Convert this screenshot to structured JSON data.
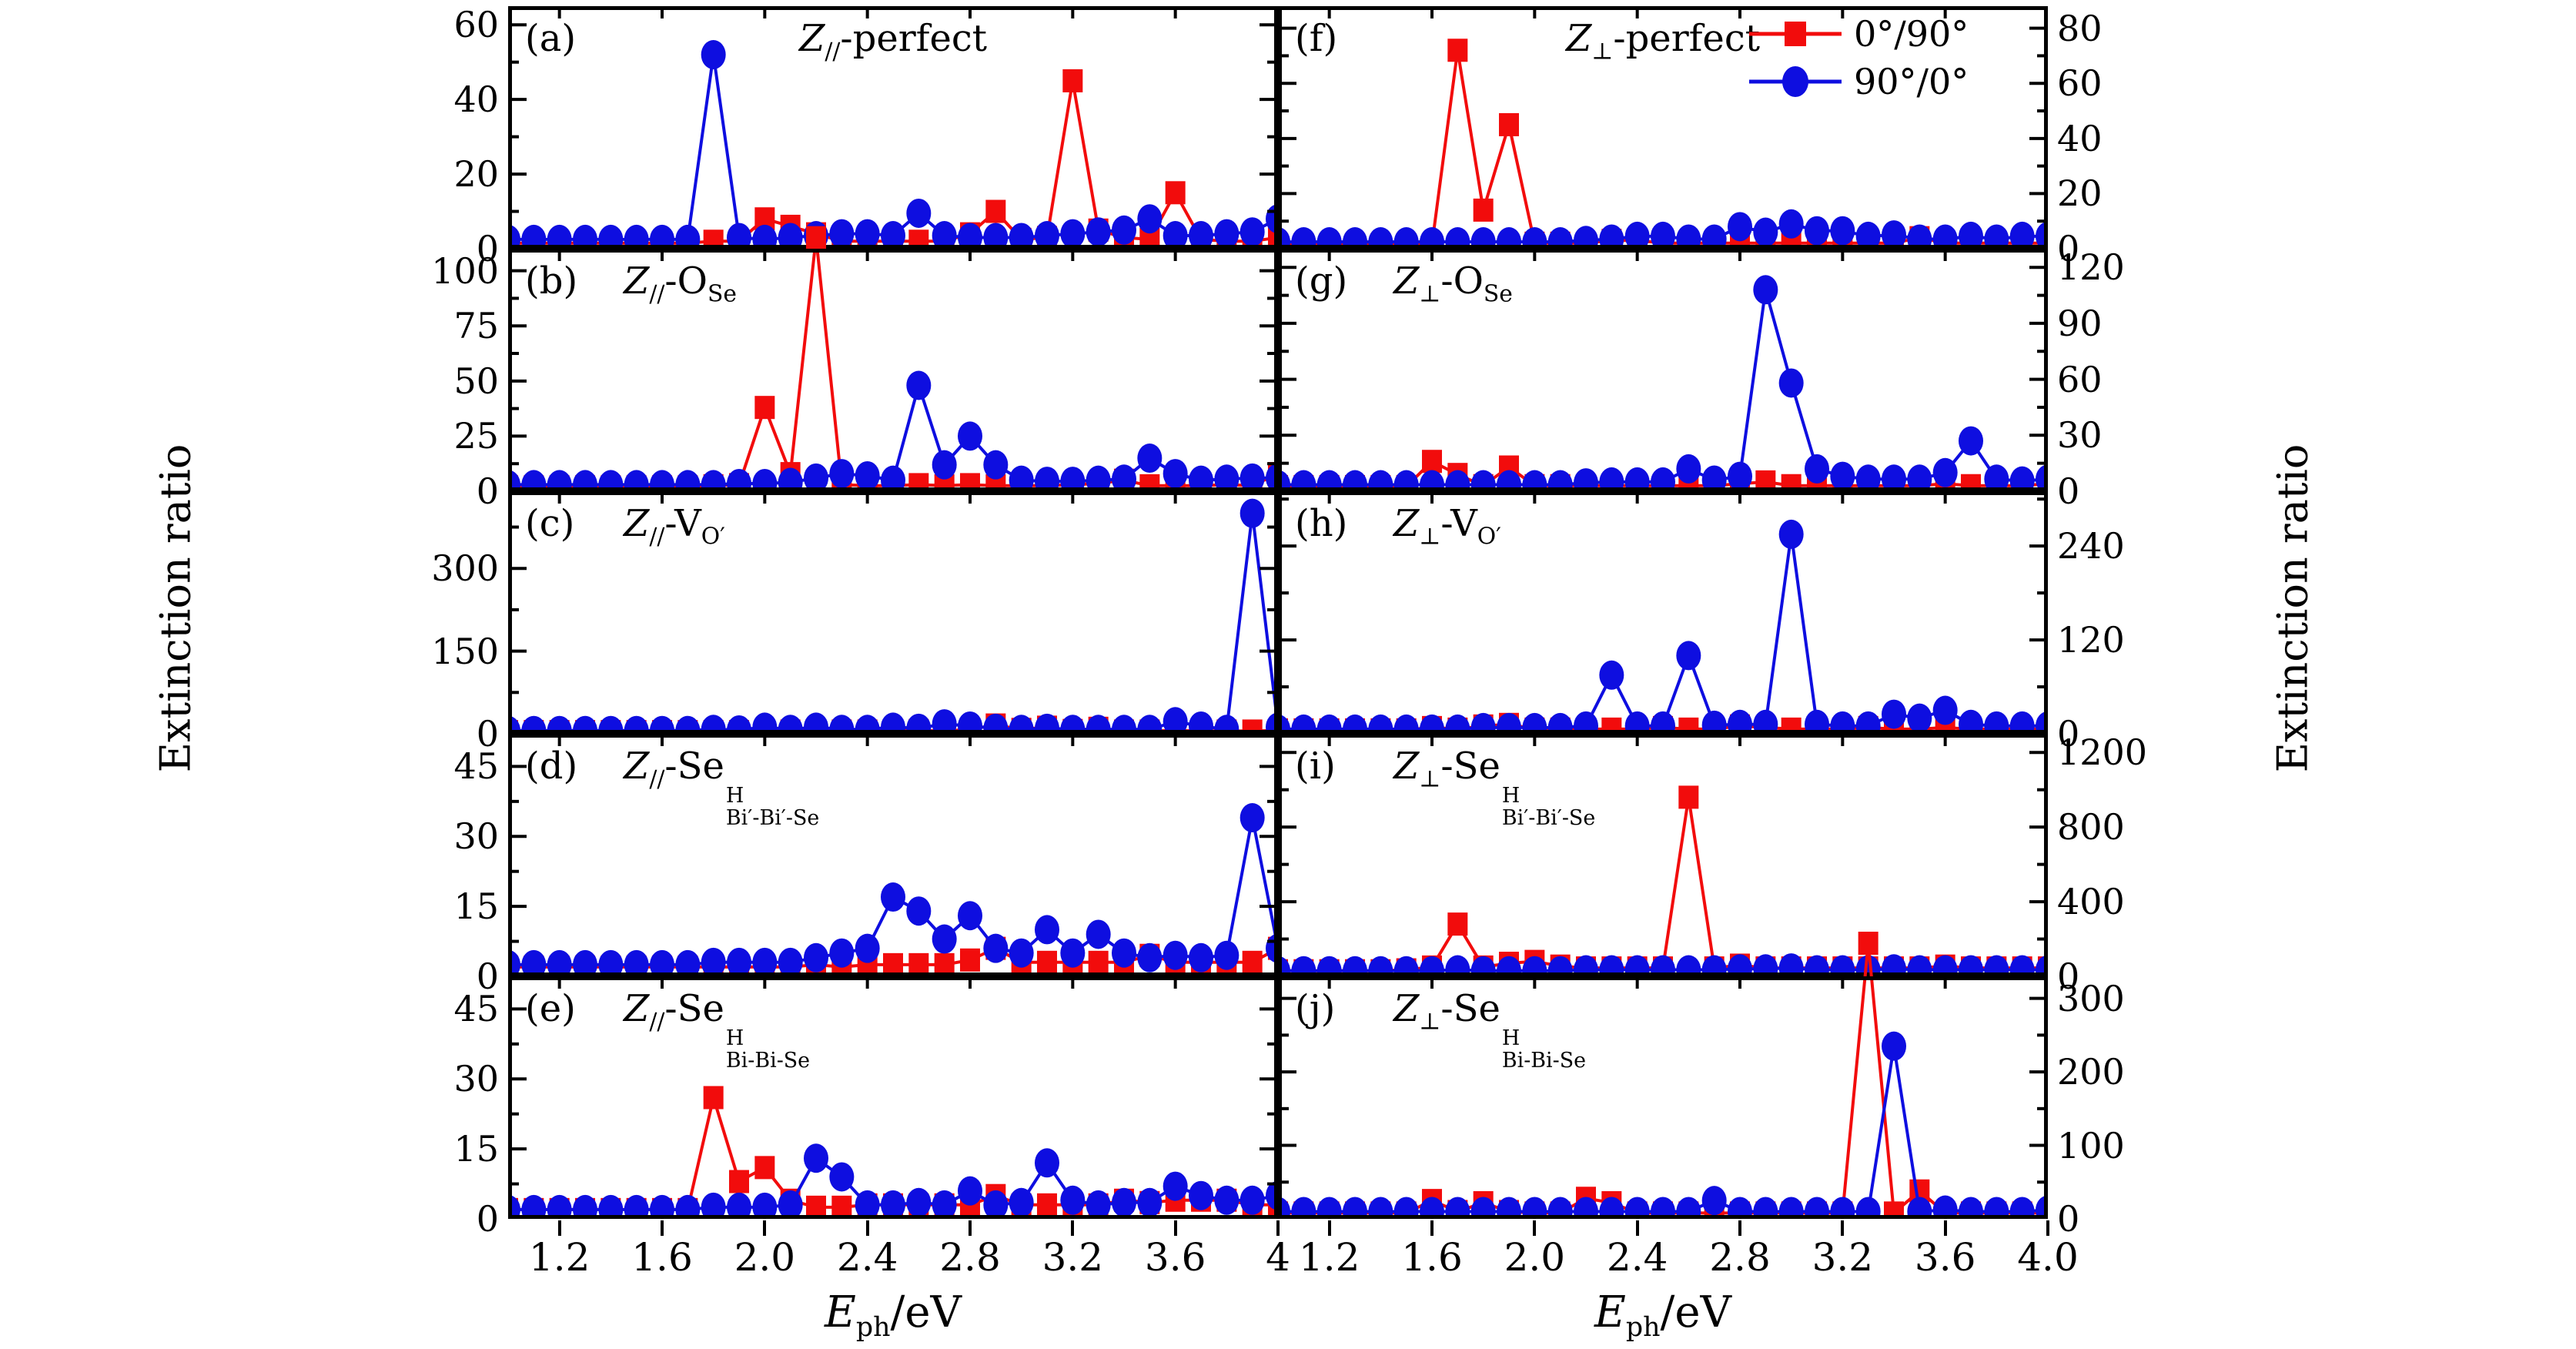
{
  "figure": {
    "y_axis_label": "Extinction ratio",
    "x_axis_title": [
      {
        "t": "E",
        "it": true
      },
      {
        "sub": "ph"
      },
      {
        "t": "/eV"
      }
    ]
  },
  "chart_data": {
    "type": "line",
    "x_min": 1.0,
    "x_max": 4.0,
    "x": [
      1.0,
      1.1,
      1.2,
      1.3,
      1.4,
      1.5,
      1.6,
      1.7,
      1.8,
      1.9,
      2.0,
      2.1,
      2.2,
      2.3,
      2.4,
      2.5,
      2.6,
      2.7,
      2.8,
      2.9,
      3.0,
      3.1,
      3.2,
      3.3,
      3.4,
      3.5,
      3.6,
      3.7,
      3.8,
      3.9,
      4.0
    ],
    "xticks": {
      "values": [
        1.2,
        1.6,
        2.0,
        2.4,
        2.8,
        3.2,
        3.6,
        4.0
      ],
      "labels_left": [
        "1.2",
        "1.6",
        "2.0",
        "2.4",
        "2.8",
        "3.2",
        "3.6",
        "4"
      ],
      "labels_right": [
        "1.2",
        "1.6",
        "2.0",
        "2.4",
        "2.8",
        "3.2",
        "3.6",
        "4.0"
      ]
    },
    "legend": [
      {
        "key": "red",
        "label": "0°/90°",
        "marker": "square",
        "color": "#f20c0c"
      },
      {
        "key": "blue",
        "label": "90°/0°",
        "marker": "circle",
        "color": "#0e0ee0"
      }
    ],
    "panels": [
      {
        "id": "a",
        "tag": "(a)",
        "col": 0,
        "row": 0,
        "center_title": true,
        "ylim": 65,
        "yticks": [
          0,
          20,
          40,
          60
        ],
        "title": [
          {
            "t": "Z",
            "it": true
          },
          {
            "sub": "//"
          },
          {
            "t": "-perfect"
          }
        ],
        "series": {
          "red": [
            1.5,
            1.5,
            1.5,
            1.5,
            1.5,
            1.5,
            1.5,
            1.5,
            2,
            2,
            8,
            6,
            4,
            2,
            2,
            2,
            2,
            2,
            4,
            10,
            2.5,
            3,
            45,
            5,
            3,
            2.5,
            15,
            2.5,
            2,
            2,
            3
          ],
          "blue": [
            2.5,
            2.5,
            2.5,
            2.5,
            2.5,
            2.5,
            2.5,
            2.5,
            52,
            3,
            2.5,
            3,
            3.5,
            4,
            4,
            3.5,
            9.5,
            3.5,
            3,
            3,
            3,
            3.5,
            4,
            4.5,
            5,
            8,
            3.5,
            3.5,
            4,
            4.5,
            8
          ]
        }
      },
      {
        "id": "b",
        "tag": "(b)",
        "col": 0,
        "row": 1,
        "center_title": false,
        "ylim": 110,
        "yticks": [
          0,
          25,
          50,
          75,
          100
        ],
        "title": [
          {
            "t": "Z",
            "it": true
          },
          {
            "sub": "//"
          },
          {
            "t": "-O"
          },
          {
            "sub": "Se"
          }
        ],
        "series": {
          "red": [
            2,
            2,
            2,
            2,
            2,
            2,
            2,
            2,
            2.5,
            3,
            38,
            8,
            115,
            3,
            2.5,
            2.5,
            3,
            2.5,
            3,
            2.5,
            2.5,
            2.5,
            3,
            3.5,
            5,
            2.5,
            2.5,
            2.5,
            3,
            2.5,
            8
          ],
          "blue": [
            3,
            3,
            3,
            3,
            3,
            3,
            3,
            3,
            3,
            3.5,
            3.5,
            4,
            6,
            8,
            7,
            5,
            48,
            12,
            25,
            12,
            5,
            4.5,
            4.5,
            5,
            5.5,
            15,
            8,
            5,
            5.5,
            6,
            6
          ]
        }
      },
      {
        "id": "c",
        "tag": "(c)",
        "col": 0,
        "row": 2,
        "center_title": false,
        "ylim": 440,
        "yticks": [
          0,
          150,
          300
        ],
        "title": [
          {
            "t": "Z",
            "it": true
          },
          {
            "sub": "//"
          },
          {
            "t": "-V"
          },
          {
            "sub": "O′"
          }
        ],
        "series": {
          "red": [
            4,
            4,
            4,
            4,
            4,
            4,
            4,
            4,
            4,
            4,
            5,
            5,
            6,
            5,
            5,
            5,
            6,
            5,
            8,
            16,
            8,
            12,
            6,
            10,
            5,
            5,
            6,
            5,
            5,
            5,
            6
          ],
          "blue": [
            6,
            6,
            6,
            6,
            6,
            6,
            6,
            6,
            8,
            7,
            12,
            8,
            12,
            8,
            8,
            12,
            10,
            18,
            14,
            10,
            8,
            10,
            8,
            8,
            8,
            8,
            22,
            14,
            8,
            400,
            12
          ]
        }
      },
      {
        "id": "d",
        "tag": "(d)",
        "col": 0,
        "row": 3,
        "center_title": false,
        "ylim": 52,
        "yticks": [
          0,
          15,
          30,
          45
        ],
        "title": [
          {
            "t": "Z",
            "it": true
          },
          {
            "sub": "//"
          },
          {
            "t": "-Se"
          },
          {
            "stack": {
              "sup": "H",
              "sub": "Bi′-Bi′-Se"
            }
          }
        ],
        "series": {
          "red": [
            2,
            2,
            2,
            2,
            2,
            2,
            2,
            2,
            2,
            2,
            2,
            2,
            2.5,
            2,
            2.5,
            2.5,
            2.5,
            2.5,
            3.5,
            6,
            3,
            3,
            3,
            3,
            3,
            4.5,
            3,
            3,
            3,
            3,
            6
          ],
          "blue": [
            2.5,
            2.5,
            2.5,
            2.5,
            2.5,
            2.5,
            2.5,
            2.5,
            3,
            3,
            3,
            3,
            4,
            5,
            6,
            17,
            14,
            8,
            13,
            6,
            5,
            10,
            5,
            9,
            5,
            4,
            4.5,
            4,
            4.5,
            34,
            6
          ]
        }
      },
      {
        "id": "e",
        "tag": "(e)",
        "col": 0,
        "row": 4,
        "center_title": false,
        "ylim": 52,
        "yticks": [
          0,
          15,
          30,
          45
        ],
        "title": [
          {
            "t": "Z",
            "it": true
          },
          {
            "sub": "//"
          },
          {
            "t": "-Se"
          },
          {
            "stack": {
              "sup": "H",
              "sub": "Bi-Bi-Se"
            }
          }
        ],
        "series": {
          "red": [
            2,
            2,
            2,
            2,
            2,
            2,
            2,
            2,
            26,
            8,
            11,
            4,
            2.5,
            2.5,
            3,
            3,
            3,
            3,
            3,
            5,
            3,
            3,
            3,
            3,
            4,
            3.5,
            4,
            4,
            4,
            3,
            3
          ],
          "blue": [
            2,
            2,
            2,
            2,
            2,
            2,
            2,
            2,
            2.5,
            2.5,
            2.5,
            3,
            13,
            9,
            3,
            3,
            3.5,
            3,
            6,
            3,
            3.5,
            12,
            4,
            3,
            3.5,
            3.5,
            7,
            5,
            4,
            4,
            5
          ]
        }
      },
      {
        "id": "f",
        "tag": "(f)",
        "col": 1,
        "row": 0,
        "center_title": true,
        "ylim": 88,
        "yticks": [
          0,
          20,
          40,
          60,
          80
        ],
        "title": [
          {
            "t": "Z",
            "it": true
          },
          {
            "sub": "⊥"
          },
          {
            "t": "-perfect"
          }
        ],
        "series": {
          "red": [
            1.5,
            1.5,
            1.5,
            1.5,
            1.5,
            1.5,
            1.5,
            72,
            14,
            45,
            2,
            2,
            2,
            3,
            3,
            2,
            2,
            2,
            2,
            2,
            2,
            2,
            2,
            2,
            2,
            4,
            2,
            2,
            2,
            2,
            2
          ],
          "blue": [
            2.5,
            2.5,
            2.5,
            2.5,
            2.5,
            2.5,
            2.5,
            2.5,
            2.5,
            2.5,
            2.5,
            2.5,
            3,
            3.5,
            4.5,
            4.5,
            3.5,
            3.5,
            8,
            6,
            9,
            6.5,
            6.5,
            4.5,
            5,
            3.5,
            3.5,
            4.5,
            3.5,
            4.5,
            4.5
          ]
        }
      },
      {
        "id": "g",
        "tag": "(g)",
        "col": 1,
        "row": 1,
        "center_title": false,
        "ylim": 130,
        "yticks": [
          0,
          30,
          60,
          90,
          120
        ],
        "title": [
          {
            "t": "Z",
            "it": true
          },
          {
            "sub": "⊥"
          },
          {
            "t": "-O"
          },
          {
            "sub": "Se"
          }
        ],
        "series": {
          "red": [
            2.5,
            2.5,
            2.5,
            2.5,
            2.5,
            2.5,
            16,
            9,
            3,
            13,
            3,
            3,
            3,
            3,
            3,
            3,
            3,
            3,
            4,
            5,
            3,
            3,
            3,
            3,
            3,
            3,
            4,
            3,
            3,
            3,
            4
          ],
          "blue": [
            3.5,
            3.5,
            3.5,
            3.5,
            3.5,
            3.5,
            3.5,
            3.5,
            3.5,
            3.5,
            3.5,
            3.5,
            4.5,
            5,
            5,
            5,
            12,
            6,
            8,
            108,
            58,
            12,
            8,
            6.5,
            6.5,
            6.5,
            10,
            27,
            6.5,
            5.5,
            6.5
          ]
        }
      },
      {
        "id": "h",
        "tag": "(h)",
        "col": 1,
        "row": 2,
        "center_title": false,
        "ylim": 310,
        "yticks": [
          0,
          120,
          240
        ],
        "title": [
          {
            "t": "Z",
            "it": true
          },
          {
            "sub": "⊥"
          },
          {
            "t": "-V"
          },
          {
            "sub": "O′"
          }
        ],
        "series": {
          "red": [
            5,
            5,
            5,
            5,
            5,
            5,
            8,
            6,
            10,
            12,
            6,
            6,
            6,
            6,
            6,
            8,
            6,
            6,
            10,
            8,
            6,
            6,
            6,
            8,
            6,
            6,
            8,
            6,
            6,
            6,
            6
          ],
          "blue": [
            6,
            6,
            6,
            6,
            6,
            6,
            6,
            6,
            8,
            8,
            8,
            8,
            10,
            75,
            10,
            10,
            100,
            11,
            12,
            12,
            255,
            12,
            10,
            10,
            25,
            20,
            30,
            12,
            10,
            10,
            10
          ]
        }
      },
      {
        "id": "i",
        "tag": "(i)",
        "col": 1,
        "row": 3,
        "center_title": false,
        "ylim": 1300,
        "yticks": [
          0,
          400,
          800,
          1200
        ],
        "title": [
          {
            "t": "Z",
            "it": true
          },
          {
            "sub": "⊥"
          },
          {
            "t": "-Se"
          },
          {
            "stack": {
              "sup": "H",
              "sub": "Bi′-Bi′-Se"
            }
          }
        ],
        "series": {
          "red": [
            30,
            30,
            30,
            30,
            30,
            35,
            50,
            280,
            50,
            70,
            80,
            55,
            45,
            45,
            45,
            45,
            960,
            45,
            60,
            45,
            45,
            45,
            45,
            45,
            45,
            45,
            55,
            45,
            45,
            45,
            45
          ],
          "blue": [
            30,
            30,
            30,
            30,
            30,
            30,
            30,
            35,
            30,
            30,
            30,
            30,
            35,
            35,
            35,
            35,
            35,
            35,
            40,
            40,
            45,
            35,
            35,
            35,
            40,
            35,
            35,
            35,
            35,
            35,
            35
          ]
        }
      },
      {
        "id": "j",
        "tag": "(j)",
        "col": 1,
        "row": 4,
        "center_title": false,
        "ylim": 330,
        "yticks": [
          0,
          100,
          200,
          300
        ],
        "title": [
          {
            "t": "Z",
            "it": true
          },
          {
            "sub": "⊥"
          },
          {
            "t": "-Se"
          },
          {
            "stack": {
              "sup": "H",
              "sub": "Bi-Bi-Se"
            }
          }
        ],
        "series": {
          "red": [
            8,
            8,
            8,
            8,
            8,
            8,
            25,
            10,
            22,
            10,
            8,
            8,
            28,
            22,
            8,
            8,
            8,
            8,
            8,
            8,
            8,
            8,
            8,
            375,
            8,
            38,
            8,
            8,
            8,
            8,
            8
          ],
          "blue": [
            10,
            10,
            10,
            10,
            10,
            10,
            10,
            10,
            10,
            10,
            10,
            10,
            10,
            10,
            10,
            10,
            10,
            25,
            10,
            10,
            10,
            10,
            10,
            10,
            235,
            10,
            12,
            10,
            10,
            10,
            12
          ]
        }
      }
    ]
  }
}
